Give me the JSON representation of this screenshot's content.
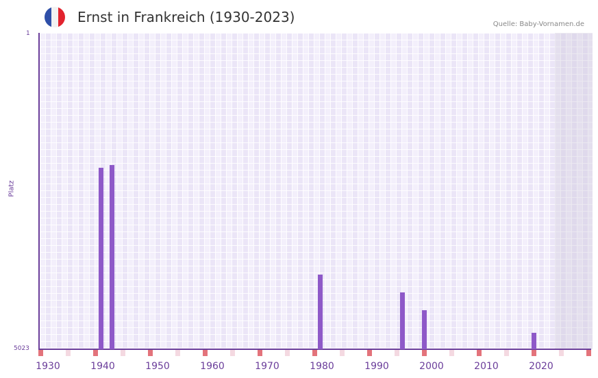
{
  "header": {
    "title": "Ernst in Frankreich (1930-2023)",
    "source": "Quelle: Baby-Vornamen.de",
    "flag_colors": [
      "#2e4fa8",
      "#f2f2f2",
      "#e2232e"
    ]
  },
  "axis": {
    "y_top_label": "1",
    "y_bottom_label": "5023",
    "y_title": "Platz",
    "x_labels": [
      "1930",
      "1940",
      "1950",
      "1960",
      "1970",
      "1980",
      "1990",
      "2000",
      "2010",
      "2020"
    ]
  },
  "colors": {
    "bar": "#8e59c8",
    "axis": "#6a3d9a",
    "tick_major": "#e3737b",
    "tick_minor": "#f4d9e1"
  },
  "chart_data": {
    "type": "bar",
    "title": "Ernst in Frankreich (1930-2023)",
    "xlabel": "",
    "ylabel": "Platz",
    "ylim": [
      5023,
      1
    ],
    "y_inverted": true,
    "x": [
      1939,
      1941,
      1979,
      1994,
      1998,
      2018
    ],
    "values": [
      2142,
      2099,
      3838,
      4121,
      4404,
      4762
    ],
    "x_ticks": [
      1930,
      1940,
      1950,
      1960,
      1970,
      1980,
      1990,
      2000,
      2010,
      2020
    ],
    "grid": true,
    "legend": null
  }
}
